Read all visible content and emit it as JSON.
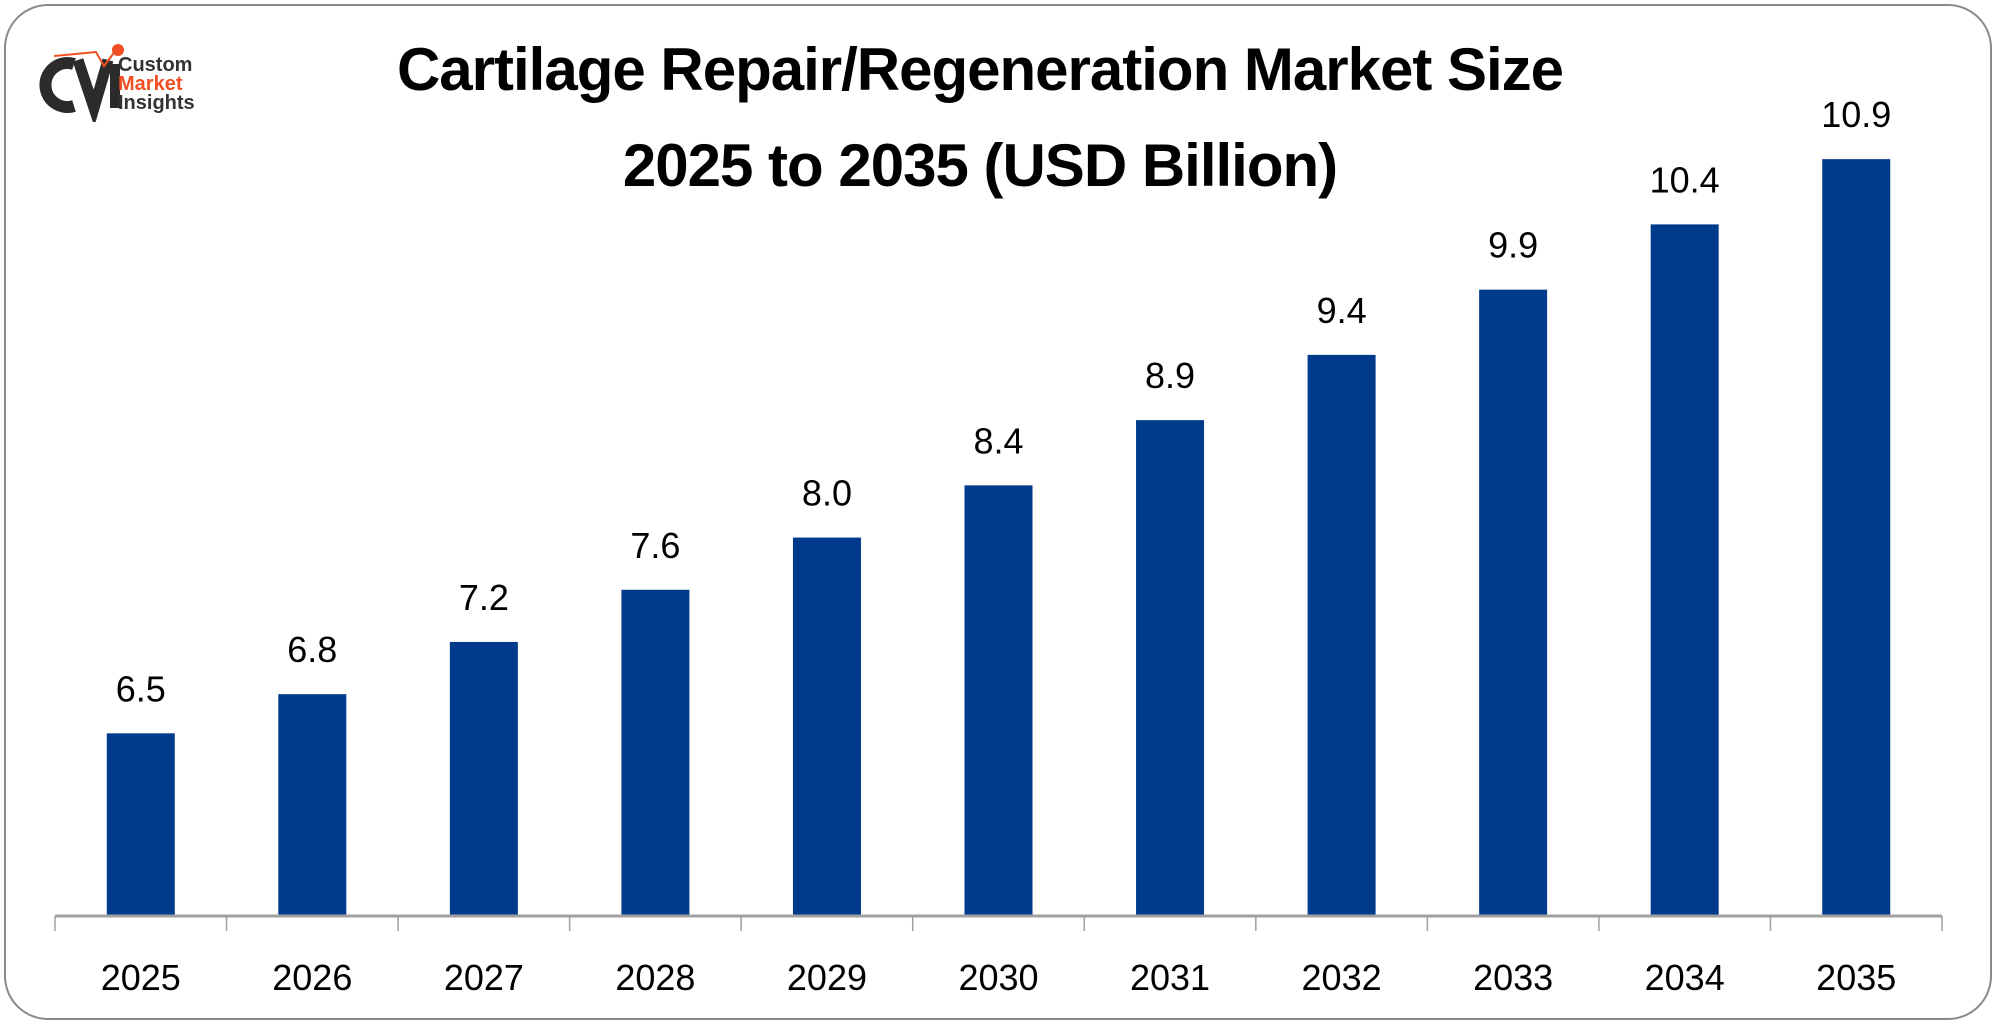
{
  "logo": {
    "line1": "Custom",
    "line2": "Market",
    "line3": "Insights",
    "accent": "#f04e23"
  },
  "chart_data": {
    "type": "bar",
    "title_line1": "Cartilage Repair/Regeneration Market Size",
    "title_line2": "2025 to 2035 (USD Billion)",
    "categories": [
      "2025",
      "2026",
      "2027",
      "2028",
      "2029",
      "2030",
      "2031",
      "2032",
      "2033",
      "2034",
      "2035"
    ],
    "values": [
      6.5,
      6.8,
      7.2,
      7.6,
      8.0,
      8.4,
      8.9,
      9.4,
      9.9,
      10.4,
      10.9
    ],
    "value_labels": [
      "6.5",
      "6.8",
      "7.2",
      "7.6",
      "8.0",
      "8.4",
      "8.9",
      "9.4",
      "9.9",
      "10.4",
      "10.9"
    ],
    "xlabel": "",
    "ylabel": "",
    "ylim": [
      5.1,
      11.2
    ],
    "grid": false,
    "bar_color": "#003a8c"
  }
}
